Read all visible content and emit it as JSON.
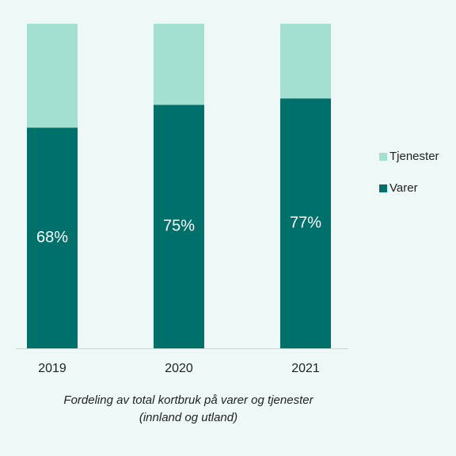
{
  "chart_data": {
    "type": "stacked-bar",
    "title": "Fordeling av total kortbruk på varer og tjenester",
    "subtitle": "(innland og utland)",
    "categories": [
      "2019",
      "2020",
      "2021"
    ],
    "series": [
      {
        "name": "Varer",
        "color": "#00706b",
        "values": [
          68,
          75,
          77
        ],
        "value_labels": [
          "68%",
          "75%",
          "77%"
        ]
      },
      {
        "name": "Tjenester",
        "color": "#a4e0d2",
        "values": [
          32,
          25,
          23
        ]
      }
    ],
    "ylim": [
      0,
      100
    ],
    "legend": "right"
  }
}
